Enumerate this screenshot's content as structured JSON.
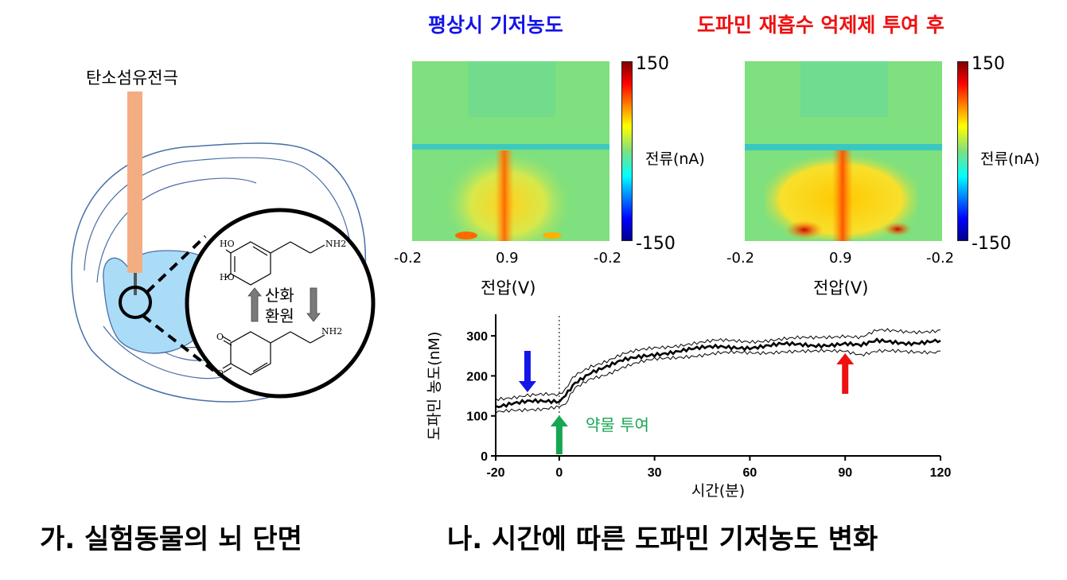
{
  "colors": {
    "baseline": "#1515e8",
    "after_drug": "#ee1111",
    "drug_marker": "#17a652",
    "electrode": "#f3ad82",
    "region_fill": "#aadcf8"
  },
  "panel_a": {
    "electrode_label": "탄소섬유전극",
    "oxidation_label": "산화",
    "reduction_label": "환원",
    "mol_top_ho1": "HO",
    "mol_top_ho2": "HO",
    "mol_top_nh2": "NH2",
    "mol_bottom_nh2": "NH2",
    "caption": "가. 실험동물의 뇌 단면"
  },
  "panel_b": {
    "heatmap_left_title": "평상시 기저농도",
    "heatmap_right_title": "도파민 재흡수 억제제 투여 후",
    "colorbar_max": "150",
    "colorbar_min": "-150",
    "colorbar_label": "전류(nA)",
    "voltage_ticks": [
      "-0.2",
      "0.9",
      "-0.2"
    ],
    "voltage_label": "전압(V)",
    "drug_label": "약물 투여",
    "caption": "나. 시간에 따른 도파민 기저농도 변화"
  },
  "chart_data": {
    "type": "line",
    "xlabel": "시간(분)",
    "ylabel": "도파민 농도(nM)",
    "xlim": [
      -20,
      120
    ],
    "ylim": [
      0,
      350
    ],
    "xticks": [
      -20,
      0,
      30,
      60,
      90,
      120
    ],
    "yticks": [
      0,
      100,
      200,
      300
    ],
    "x": [
      -20,
      -15,
      -10,
      -5,
      0,
      2,
      5,
      10,
      15,
      20,
      25,
      30,
      40,
      50,
      60,
      70,
      80,
      90,
      95,
      100,
      110,
      120
    ],
    "series": [
      {
        "values": [
          125,
          132,
          135,
          134,
          135,
          148,
          185,
          210,
          222,
          237,
          247,
          255,
          265,
          272,
          272,
          278,
          276,
          282,
          275,
          286,
          283,
          288
        ]
      },
      {
        "values": [
          143,
          148,
          152,
          152,
          150,
          165,
          202,
          226,
          238,
          253,
          262,
          270,
          280,
          287,
          287,
          292,
          294,
          302,
          297,
          312,
          310,
          315
        ]
      },
      {
        "values": [
          108,
          116,
          118,
          117,
          120,
          132,
          168,
          194,
          206,
          222,
          232,
          240,
          250,
          256,
          257,
          262,
          259,
          264,
          255,
          262,
          258,
          262
        ]
      }
    ],
    "arrows": [
      {
        "x": -10,
        "color": "#1515e8"
      },
      {
        "x": 0,
        "color": "#17a652"
      },
      {
        "x": 90,
        "color": "#ee1111"
      }
    ]
  }
}
